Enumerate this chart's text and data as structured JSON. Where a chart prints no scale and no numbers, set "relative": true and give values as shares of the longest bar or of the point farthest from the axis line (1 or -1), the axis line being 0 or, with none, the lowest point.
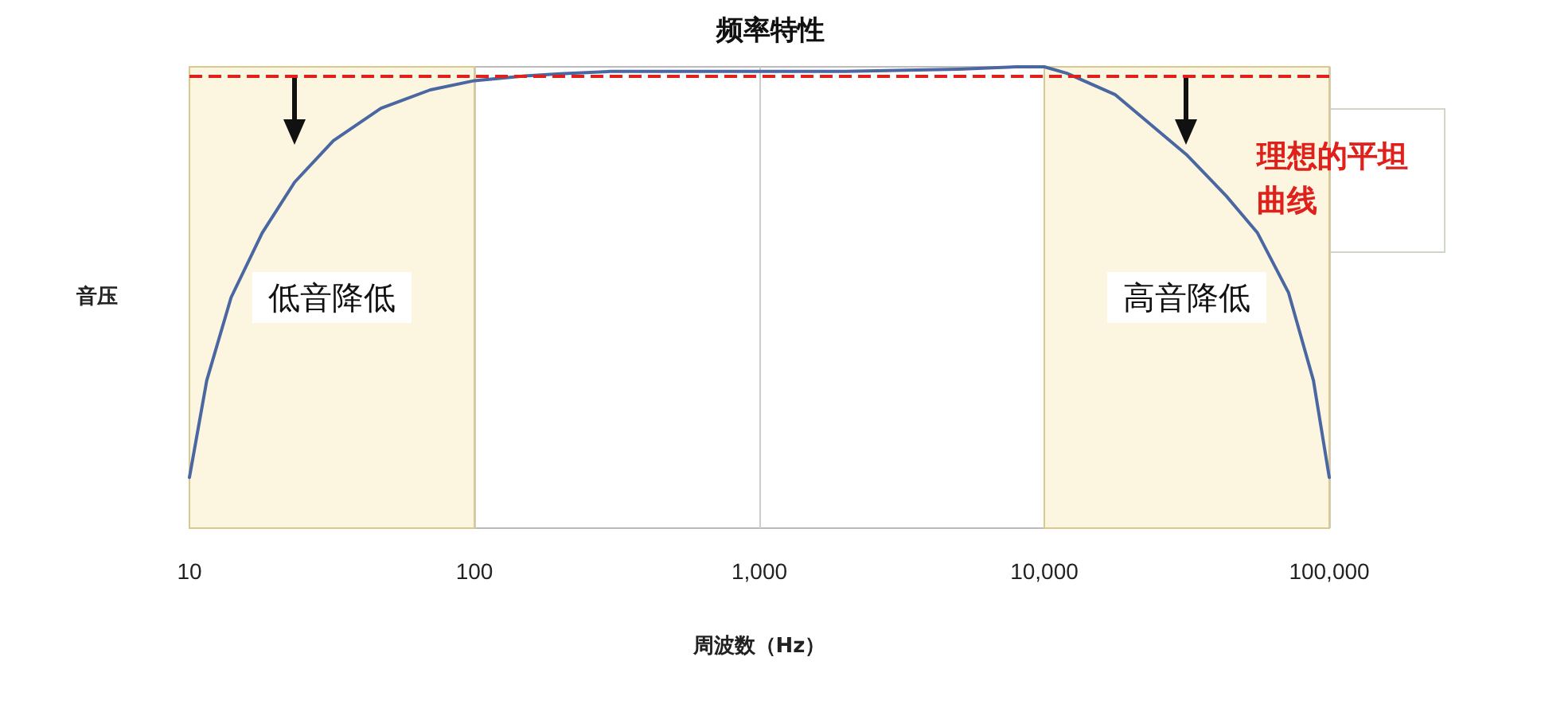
{
  "chart_data": {
    "type": "line",
    "title": "频率特性",
    "xlabel": "周波数（Hz）",
    "ylabel": "音压",
    "relative": true,
    "log": "x",
    "grid": "x",
    "marker": "none",
    "line_style": "solid",
    "x": [
      10,
      11.5,
      14,
      18,
      23.4,
      32,
      47,
      70,
      100,
      150,
      200,
      300,
      500,
      1000,
      2000,
      5000,
      8000,
      10000,
      12000,
      17700,
      31500,
      43500,
      56000,
      72000,
      88000,
      100000
    ],
    "series": [
      {
        "color": "#4a67a1",
        "values": [
          0.11,
          0.32,
          0.5,
          0.64,
          0.75,
          0.84,
          0.91,
          0.95,
          0.97,
          0.98,
          0.985,
          0.99,
          0.99,
          0.99,
          0.99,
          0.995,
          1.0,
          1.0,
          0.986,
          0.94,
          0.81,
          0.72,
          0.64,
          0.51,
          0.32,
          0.11
        ]
      }
    ],
    "xlim": [
      10,
      100000
    ],
    "xticks": [
      10,
      100,
      {
        "value": 1000,
        "label": "1,000"
      },
      {
        "value": 10000,
        "label": "10,000"
      },
      {
        "value": 100000,
        "label": "100,000"
      }
    ],
    "ref_lines": [
      {
        "axis": "y",
        "value": 0.976,
        "label": "理想的平坦曲线",
        "color": "#e0201b",
        "line_style": "dashed"
      }
    ],
    "bands": [
      {
        "axis": "x",
        "from": 10,
        "to": 100,
        "label": "低音降低",
        "color": "#fcf6e1"
      },
      {
        "axis": "x",
        "from": 10000,
        "to": 100000,
        "label": "高音降低",
        "color": "#fcf6e1"
      }
    ]
  }
}
